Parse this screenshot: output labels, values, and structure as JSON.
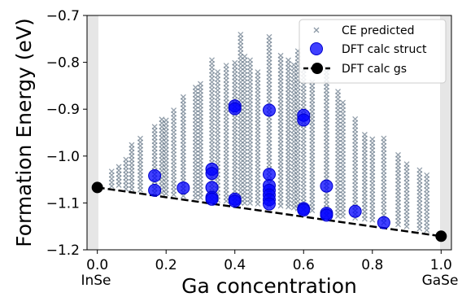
{
  "chart_data": {
    "type": "scatter",
    "xlabel": "Ga concentration",
    "ylabel": "Formation Energy (eV)",
    "xlim": [
      -0.03,
      1.03
    ],
    "ylim": [
      -1.2,
      -0.7
    ],
    "xticks": [
      0.0,
      0.2,
      0.4,
      0.6,
      0.8,
      1.0
    ],
    "xtick_labels": [
      "0.0",
      "0.2",
      "0.4",
      "0.6",
      "0.8",
      "1.0"
    ],
    "yticks": [
      -1.2,
      -1.1,
      -1.0,
      -0.9,
      -0.8,
      -0.7
    ],
    "ytick_labels": [
      "−1.2",
      "−1.1",
      "−1.0",
      "−0.9",
      "−0.8",
      "−0.7"
    ],
    "end_labels": {
      "left": "InSe",
      "right": "GaSe"
    },
    "grid": false,
    "legend_position": "top-right",
    "series": [
      {
        "name": "CE predicted",
        "marker": "x",
        "color": "#708090",
        "columns": [
          {
            "x": 0.0417,
            "ymin": -1.064,
            "ymax": -1.03
          },
          {
            "x": 0.0625,
            "ymin": -1.062,
            "ymax": -1.02
          },
          {
            "x": 0.0833,
            "ymin": -1.07,
            "ymax": -1.0
          },
          {
            "x": 0.1,
            "ymin": -1.07,
            "ymax": -0.97
          },
          {
            "x": 0.125,
            "ymin": -1.072,
            "ymax": -0.96
          },
          {
            "x": 0.1667,
            "ymin": -1.078,
            "ymax": -0.93
          },
          {
            "x": 0.1875,
            "ymin": -1.078,
            "ymax": -0.92
          },
          {
            "x": 0.2,
            "ymin": -1.08,
            "ymax": -0.92
          },
          {
            "x": 0.2222,
            "ymin": -1.082,
            "ymax": -0.9
          },
          {
            "x": 0.25,
            "ymin": -1.085,
            "ymax": -0.87
          },
          {
            "x": 0.2857,
            "ymin": -1.088,
            "ymax": -0.85
          },
          {
            "x": 0.3,
            "ymin": -1.088,
            "ymax": -0.84
          },
          {
            "x": 0.3333,
            "ymin": -1.092,
            "ymax": -0.79
          },
          {
            "x": 0.35,
            "ymin": -1.094,
            "ymax": -0.82
          },
          {
            "x": 0.375,
            "ymin": -1.096,
            "ymax": -0.8
          },
          {
            "x": 0.4,
            "ymin": -1.098,
            "ymax": -0.8
          },
          {
            "x": 0.4167,
            "ymin": -1.1,
            "ymax": -0.74
          },
          {
            "x": 0.4286,
            "ymin": -1.1,
            "ymax": -0.78
          },
          {
            "x": 0.4444,
            "ymin": -1.1,
            "ymax": -0.79
          },
          {
            "x": 0.4667,
            "ymin": -1.102,
            "ymax": -0.82
          },
          {
            "x": 0.5,
            "ymin": -1.105,
            "ymax": -0.745
          },
          {
            "x": 0.5333,
            "ymin": -1.106,
            "ymax": -0.78
          },
          {
            "x": 0.5556,
            "ymin": -1.108,
            "ymax": -0.79
          },
          {
            "x": 0.5714,
            "ymin": -1.11,
            "ymax": -0.8
          },
          {
            "x": 0.5833,
            "ymin": -1.112,
            "ymax": -0.77
          },
          {
            "x": 0.6,
            "ymin": -1.114,
            "ymax": -0.81
          },
          {
            "x": 0.625,
            "ymin": -1.116,
            "ymax": -0.84
          },
          {
            "x": 0.6667,
            "ymin": -1.126,
            "ymax": -0.81
          },
          {
            "x": 0.7,
            "ymin": -1.128,
            "ymax": -0.86
          },
          {
            "x": 0.7143,
            "ymin": -1.128,
            "ymax": -0.88
          },
          {
            "x": 0.75,
            "ymin": -1.132,
            "ymax": -0.92
          },
          {
            "x": 0.7778,
            "ymin": -1.134,
            "ymax": -0.95
          },
          {
            "x": 0.8,
            "ymin": -1.136,
            "ymax": -0.96
          },
          {
            "x": 0.8333,
            "ymin": -1.142,
            "ymax": -0.96
          },
          {
            "x": 0.875,
            "ymin": -1.146,
            "ymax": -0.99
          },
          {
            "x": 0.9,
            "ymin": -1.15,
            "ymax": -1.01
          },
          {
            "x": 0.9375,
            "ymin": -1.155,
            "ymax": -1.03
          },
          {
            "x": 0.9583,
            "ymin": -1.158,
            "ymax": -1.04
          }
        ]
      },
      {
        "name": "DFT calc struct",
        "marker": "circle",
        "color": "#0000ff",
        "points": [
          {
            "x": 0.1667,
            "y": -1.042
          },
          {
            "x": 0.1667,
            "y": -1.073
          },
          {
            "x": 0.25,
            "y": -1.068
          },
          {
            "x": 0.3333,
            "y": -1.028
          },
          {
            "x": 0.3333,
            "y": -1.037
          },
          {
            "x": 0.3333,
            "y": -1.067
          },
          {
            "x": 0.3333,
            "y": -1.088
          },
          {
            "x": 0.3333,
            "y": -1.092
          },
          {
            "x": 0.4,
            "y": -0.893
          },
          {
            "x": 0.4,
            "y": -0.899
          },
          {
            "x": 0.4,
            "y": -1.092
          },
          {
            "x": 0.4,
            "y": -1.096
          },
          {
            "x": 0.5,
            "y": -0.902
          },
          {
            "x": 0.5,
            "y": -1.039
          },
          {
            "x": 0.5,
            "y": -1.063
          },
          {
            "x": 0.5,
            "y": -1.073
          },
          {
            "x": 0.5,
            "y": -1.083
          },
          {
            "x": 0.5,
            "y": -1.093
          },
          {
            "x": 0.5,
            "y": -1.102
          },
          {
            "x": 0.6,
            "y": -0.913
          },
          {
            "x": 0.6,
            "y": -0.923
          },
          {
            "x": 0.6,
            "y": -1.112
          },
          {
            "x": 0.6,
            "y": -1.115
          },
          {
            "x": 0.6667,
            "y": -1.064
          },
          {
            "x": 0.6667,
            "y": -1.122
          },
          {
            "x": 0.6667,
            "y": -1.126
          },
          {
            "x": 0.75,
            "y": -1.118
          },
          {
            "x": 0.8333,
            "y": -1.142
          }
        ]
      },
      {
        "name": "DFT calc gs",
        "marker": "circle-line",
        "color": "#000000",
        "points": [
          {
            "x": 0.0,
            "y": -1.067
          },
          {
            "x": 1.0,
            "y": -1.171
          }
        ]
      }
    ]
  }
}
